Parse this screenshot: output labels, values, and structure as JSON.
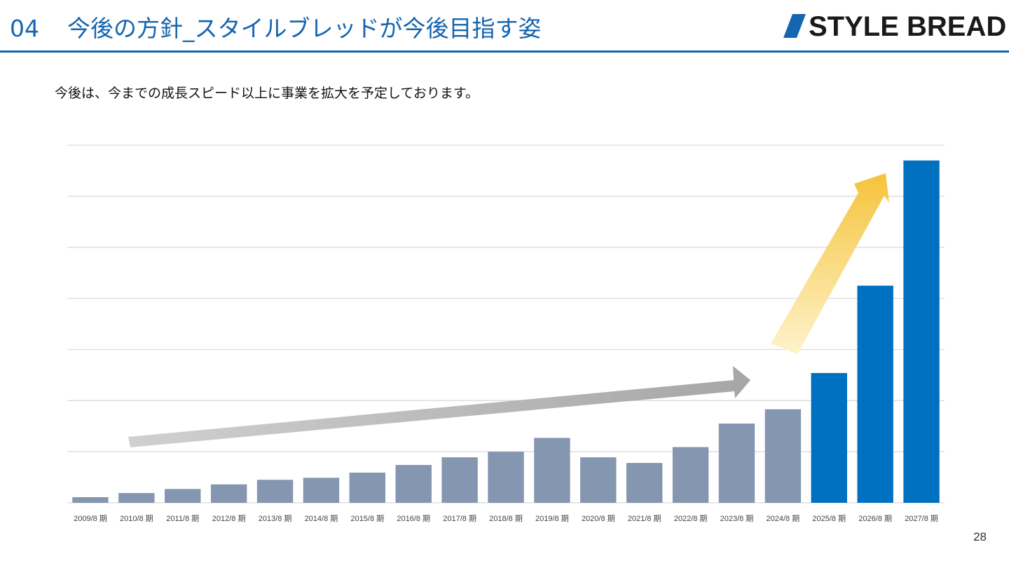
{
  "header": {
    "section_number": "04",
    "title": "今後の方針_スタイルブレッドが今後目指す姿",
    "logo_text": "STYLE BREAD"
  },
  "lead_text": "今後は、今までの成長スピード以上に事業を拡大を予定しております。",
  "page_number": "28",
  "colors": {
    "brand_blue": "#1565b0",
    "actual_bar": "#8496b0",
    "forecast_bar": "#0070c0",
    "grid": "#d9d9d9",
    "gray_arrow": "#b8b8b8",
    "yellow_arrow": "#f5c842"
  },
  "chart_data": {
    "type": "bar",
    "categories": [
      "2009/8 期",
      "2010/8 期",
      "2011/8 期",
      "2012/8 期",
      "2013/8 期",
      "2014/8 期",
      "2015/8 期",
      "2016/8 期",
      "2017/8 期",
      "2018/8 期",
      "2019/8 期",
      "2020/8 期",
      "2021/8 期",
      "2022/8 期",
      "2023/8 期",
      "2024/8 期",
      "2025/8 期",
      "2026/8 期",
      "2027/8 期"
    ],
    "series": [
      {
        "values": [
          0.11,
          0.19,
          0.27,
          0.36,
          0.45,
          0.49,
          0.59,
          0.74,
          0.89,
          1.0,
          1.27,
          0.89,
          0.78,
          1.09,
          1.55,
          1.83,
          2.54,
          4.25,
          6.7
        ]
      }
    ],
    "forecast_start_index": 16,
    "ylim": [
      0,
      7
    ],
    "grid_lines": 7,
    "y_axis_labels": false,
    "grid": true,
    "legend": "none",
    "annotations": [
      "gray growth arrow over 2010–2024",
      "yellow steep growth arrow over 2025–2027"
    ],
    "title": "",
    "xlabel": "",
    "ylabel": ""
  }
}
